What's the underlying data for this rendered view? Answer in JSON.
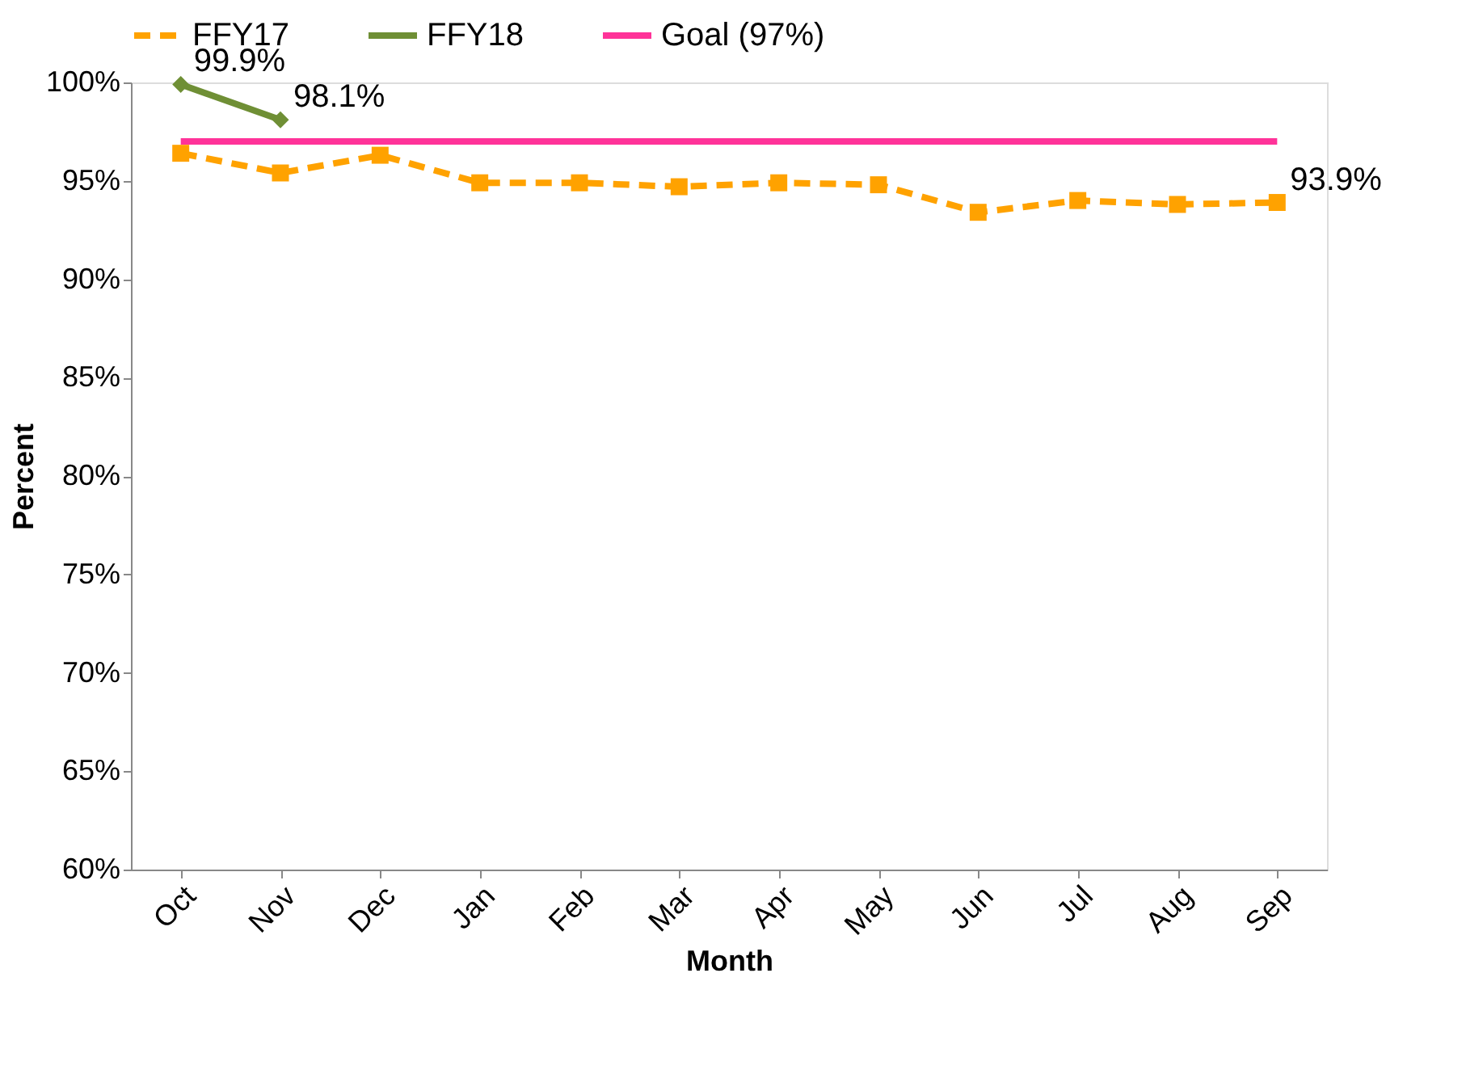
{
  "chart_data": {
    "type": "line",
    "xlabel": "Month",
    "ylabel": "Percent",
    "categories": [
      "Oct",
      "Nov",
      "Dec",
      "Jan",
      "Feb",
      "Mar",
      "Apr",
      "May",
      "Jun",
      "Jul",
      "Aug",
      "Sep"
    ],
    "series": [
      {
        "name": "FFY17",
        "color": "#ffa200",
        "marker": "square",
        "line_style": "dashed",
        "values": [
          96.4,
          95.4,
          96.3,
          94.9,
          94.9,
          94.7,
          94.9,
          94.8,
          93.4,
          94.0,
          93.8,
          93.9
        ],
        "value_labels": [
          null,
          null,
          null,
          null,
          null,
          null,
          null,
          null,
          null,
          null,
          null,
          "93.9%"
        ]
      },
      {
        "name": "FFY18",
        "color": "#6f8f35",
        "marker": "diamond",
        "line_style": "solid",
        "values": [
          99.9,
          98.1,
          null,
          null,
          null,
          null,
          null,
          null,
          null,
          null,
          null,
          null
        ],
        "value_labels": [
          "99.9%",
          "98.1%",
          null,
          null,
          null,
          null,
          null,
          null,
          null,
          null,
          null,
          null
        ]
      },
      {
        "name": "Goal (97%)",
        "color": "#ff3399",
        "marker": "none",
        "line_style": "solid",
        "values": [
          97,
          97,
          97,
          97,
          97,
          97,
          97,
          97,
          97,
          97,
          97,
          97
        ]
      }
    ],
    "ylim": [
      60,
      100
    ],
    "yticks": [
      {
        "value": 60,
        "label": "60%"
      },
      {
        "value": 65,
        "label": "65%"
      },
      {
        "value": 70,
        "label": "70%"
      },
      {
        "value": 75,
        "label": "75%"
      },
      {
        "value": 80,
        "label": "80%"
      },
      {
        "value": 85,
        "label": "85%"
      },
      {
        "value": 90,
        "label": "90%"
      },
      {
        "value": 95,
        "label": "95%"
      },
      {
        "value": 100,
        "label": "100%"
      }
    ],
    "grid": false,
    "legend": "top"
  }
}
